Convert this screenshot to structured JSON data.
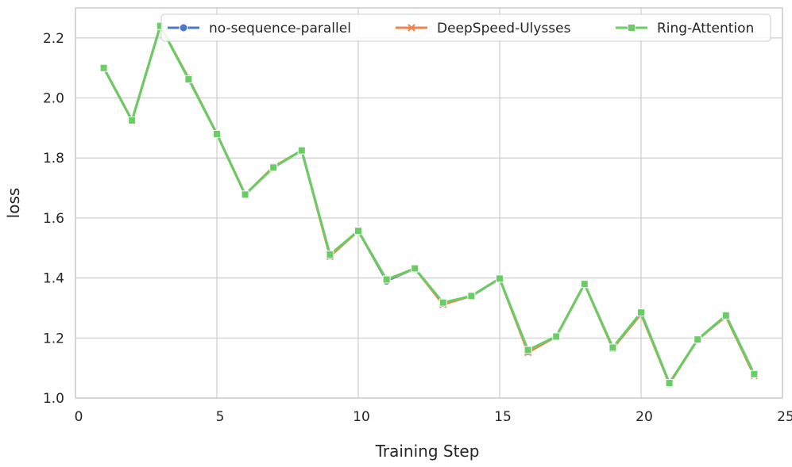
{
  "chart_data": {
    "type": "line",
    "title": "",
    "xlabel": "Training Step",
    "ylabel": "loss",
    "xlim": [
      0,
      25
    ],
    "ylim": [
      1.0,
      2.3
    ],
    "xticks": [
      "0",
      "5",
      "10",
      "15",
      "20",
      "25"
    ],
    "yticks": [
      "1.0",
      "1.2",
      "1.4",
      "1.6",
      "1.8",
      "2.0",
      "2.2"
    ],
    "grid": true,
    "legend_position": "top-right",
    "x": [
      1,
      2,
      3,
      4,
      5,
      6,
      7,
      8,
      9,
      10,
      11,
      12,
      13,
      14,
      15,
      16,
      17,
      18,
      19,
      20,
      21,
      22,
      23,
      24
    ],
    "series": [
      {
        "name": "no-sequence-parallel",
        "color": "#4878d0",
        "marker": "circle",
        "values": [
          2.1,
          1.925,
          2.24,
          2.065,
          1.88,
          1.678,
          1.77,
          1.825,
          1.475,
          1.557,
          1.39,
          1.432,
          1.315,
          1.34,
          1.398,
          1.155,
          1.205,
          1.38,
          1.168,
          1.285,
          1.048,
          1.195,
          1.275,
          1.08
        ]
      },
      {
        "name": "DeepSpeed-Ulysses",
        "color": "#ee854a",
        "marker": "x",
        "values": [
          2.1,
          1.925,
          2.24,
          2.065,
          1.88,
          1.678,
          1.77,
          1.825,
          1.472,
          1.557,
          1.393,
          1.432,
          1.312,
          1.34,
          1.398,
          1.152,
          1.205,
          1.38,
          1.165,
          1.28,
          1.048,
          1.195,
          1.272,
          1.075
        ]
      },
      {
        "name": "Ring-Attention",
        "color": "#6acc64",
        "marker": "square",
        "values": [
          2.1,
          1.925,
          2.24,
          2.062,
          1.88,
          1.678,
          1.768,
          1.825,
          1.478,
          1.557,
          1.395,
          1.432,
          1.318,
          1.34,
          1.398,
          1.16,
          1.205,
          1.38,
          1.168,
          1.285,
          1.05,
          1.195,
          1.275,
          1.08
        ]
      }
    ]
  }
}
